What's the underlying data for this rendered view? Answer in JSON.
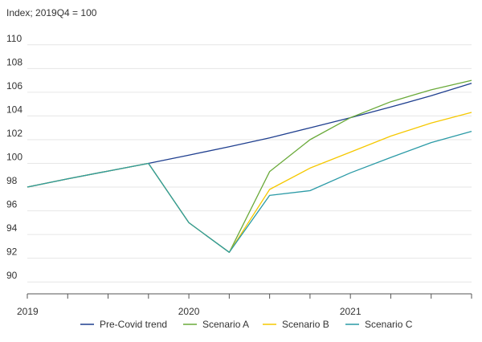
{
  "chart_data": {
    "type": "line",
    "ylabel": "Index; 2019Q4 = 100",
    "ylim": [
      89,
      111
    ],
    "y_ticks": [
      90,
      92,
      94,
      96,
      98,
      100,
      102,
      104,
      106,
      108,
      110
    ],
    "x_labels": [
      {
        "label": "2019",
        "at": "2019Q1"
      },
      {
        "label": "2020",
        "at": "2020Q1"
      },
      {
        "label": "2021",
        "at": "2021Q1"
      }
    ],
    "x": [
      "2019Q1",
      "2019Q2",
      "2019Q3",
      "2019Q4",
      "2020Q1",
      "2020Q2",
      "2020Q3",
      "2020Q4",
      "2021Q1",
      "2021Q2",
      "2021Q3",
      "2021Q4"
    ],
    "grid": true,
    "legend_position": "bottom",
    "series": [
      {
        "name": "Pre-Covid trend",
        "color": "#1f3f8f",
        "values": [
          98.0,
          98.7,
          99.35,
          100.0,
          100.7,
          101.4,
          102.15,
          103.0,
          103.85,
          104.75,
          105.7,
          106.75
        ]
      },
      {
        "name": "Scenario A",
        "color": "#6aaa3a",
        "values": [
          98.0,
          98.7,
          99.35,
          100.0,
          95.0,
          92.5,
          99.3,
          102.0,
          103.85,
          105.2,
          106.2,
          107.0
        ]
      },
      {
        "name": "Scenario B",
        "color": "#f5c800",
        "values": [
          98.0,
          98.7,
          99.35,
          100.0,
          95.0,
          92.5,
          97.8,
          99.6,
          100.95,
          102.3,
          103.4,
          104.3
        ]
      },
      {
        "name": "Scenario C",
        "color": "#2a9aa6",
        "values": [
          98.0,
          98.7,
          99.35,
          100.0,
          95.0,
          92.5,
          97.3,
          97.7,
          99.2,
          100.5,
          101.75,
          102.7
        ]
      }
    ]
  }
}
